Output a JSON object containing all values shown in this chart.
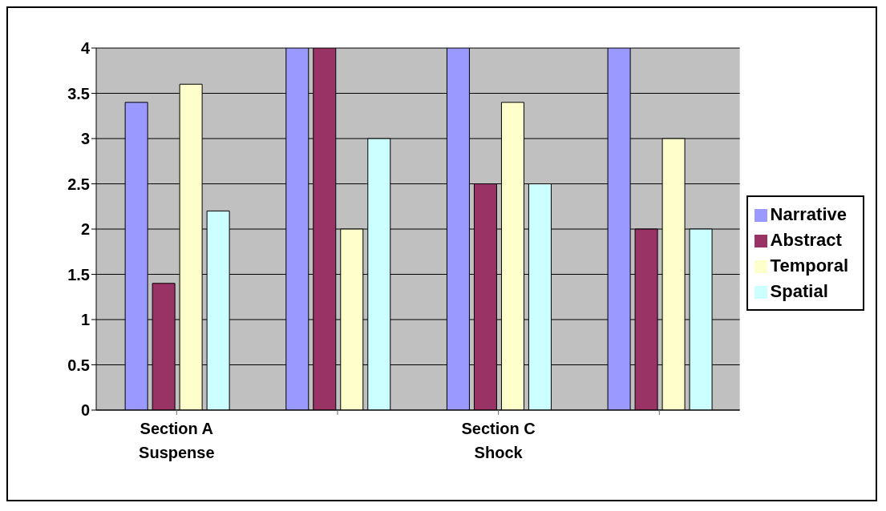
{
  "chart_data": {
    "type": "bar",
    "categories": [
      "Section A\nSuspense",
      null,
      "Section C\nShock",
      null
    ],
    "series": [
      {
        "name": "Narrative",
        "color": "#9999ff",
        "values": [
          3.4,
          4,
          4,
          4
        ]
      },
      {
        "name": "Abstract",
        "color": "#993366",
        "values": [
          1.4,
          4,
          2.5,
          2
        ]
      },
      {
        "name": "Temporal",
        "color": "#ffffcc",
        "values": [
          3.6,
          2,
          3.4,
          3
        ]
      },
      {
        "name": "Spatial",
        "color": "#ccffff",
        "values": [
          2.2,
          3,
          2.5,
          2
        ]
      }
    ],
    "ylim": [
      0,
      4
    ],
    "yticks": [
      0,
      0.5,
      1,
      1.5,
      2,
      2.5,
      3,
      3.5,
      4
    ],
    "grid": "y",
    "legend": "right"
  }
}
